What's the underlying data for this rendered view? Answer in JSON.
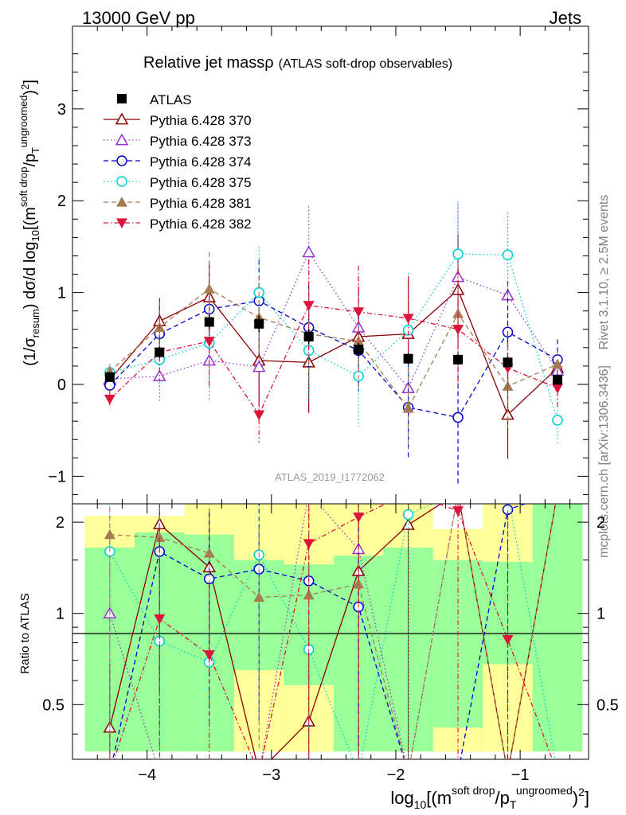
{
  "header": {
    "left": "13000 GeV pp",
    "right": "Jets"
  },
  "side_labels": {
    "rivet": "Rivet 3.1.10, ≥ 2.5M events",
    "mcplots": "mcplots.cern.ch [arXiv:1306.3436]"
  },
  "chart_data": {
    "type": "line",
    "title": "Relative jet massρ",
    "subtitle": "(ATLAS soft-drop observables)",
    "ylabel": "(1/σresum) dσ/d log10[(m^soft drop/pT^ungroomed)^2]",
    "xlabel": "log10[(m^soft drop/pT^ungroomed)^2]",
    "analysis": "ATLAS_2019_I1772062",
    "ratio_ylabel": "Ratio to ATLAS",
    "xlim": [
      -4.6,
      -0.45
    ],
    "ylim": [
      -1.3,
      3.9
    ],
    "ratio_ylim": [
      0.33,
      2.3
    ],
    "x": [
      -4.3,
      -3.9,
      -3.5,
      -3.1,
      -2.7,
      -2.3,
      -1.9,
      -1.5,
      -1.1,
      -0.7
    ],
    "x_ticks": [
      "−4",
      "−3",
      "−2",
      "−1"
    ],
    "y_ticks": [
      "−1",
      "0",
      "1",
      "2",
      "3"
    ],
    "ratio_ticks": [
      "0.5",
      "1",
      "2"
    ],
    "data": {
      "name": "ATLAS",
      "values": [
        0.08,
        0.35,
        0.68,
        0.66,
        0.52,
        0.38,
        0.28,
        0.27,
        0.24,
        0.05
      ],
      "errors": [
        0.05,
        0.06,
        0.08,
        0.09,
        0.08,
        0.07,
        0.06,
        0.06,
        0.06,
        0.04
      ]
    },
    "band_edges": [
      -4.5,
      -4.1,
      -3.7,
      -3.3,
      -2.9,
      -2.5,
      -2.1,
      -1.7,
      -1.3,
      -0.9,
      -0.5
    ],
    "band_yellow": [
      [
        0.35,
        2.1
      ],
      [
        0.35,
        2.1
      ],
      [
        0.35,
        2.3
      ],
      [
        0.35,
        2.3
      ],
      [
        0.35,
        2.3
      ],
      [
        0.35,
        2.3
      ],
      [
        0.35,
        2.3
      ],
      [
        0.35,
        1.9
      ],
      [
        0.35,
        2.3
      ],
      [
        0.35,
        2.3
      ]
    ],
    "band_green": [
      [
        0.35,
        1.65
      ],
      [
        0.35,
        1.85
      ],
      [
        0.35,
        1.82
      ],
      [
        0.35,
        1.5
      ],
      [
        0.35,
        1.45
      ],
      [
        0.35,
        1.55
      ],
      [
        0.35,
        1.65
      ],
      [
        0.35,
        1.5
      ],
      [
        0.35,
        1.48
      ],
      [
        0.35,
        2.3
      ]
    ],
    "band_yellow_low": [
      [
        0.35,
        0.35
      ],
      [
        0.35,
        0.35
      ],
      [
        0.35,
        0.35
      ],
      [
        0.35,
        0.65
      ],
      [
        0.35,
        0.58
      ],
      [
        0.35,
        0.35
      ],
      [
        0.35,
        0.35
      ],
      [
        0.35,
        0.42
      ],
      [
        0.35,
        0.68
      ],
      [
        0.35,
        0.35
      ]
    ],
    "series": [
      {
        "name": "Pythia 6.428 370",
        "color": "#8b0000",
        "marker": "triangle-open",
        "dash": "",
        "values": [
          0.05,
          0.69,
          0.95,
          0.26,
          0.24,
          0.52,
          0.55,
          1.03,
          -0.33,
          0.18
        ],
        "errors": [
          0.05,
          0.25,
          0.38,
          0.5,
          0.55,
          0.55,
          0.63,
          0.6,
          0.48,
          0.13
        ],
        "ratio": [
          0.42,
          1.97,
          1.42,
          0.3,
          0.44,
          1.38,
          1.96,
          2.5,
          0.2,
          2.5
        ]
      },
      {
        "name": "Pythia 6.428 373",
        "color": "#9932cc",
        "marker": "triangle-open",
        "dash": "1.5 3",
        "values": [
          0.06,
          0.09,
          0.26,
          0.19,
          1.44,
          0.62,
          -0.04,
          1.17,
          0.97,
          0.15
        ],
        "errors": [
          0.06,
          0.29,
          0.45,
          0.55,
          0.5,
          0.56,
          0.52,
          0.8,
          0.9,
          0.12
        ],
        "ratio": [
          1.0,
          0.25,
          0.2,
          0.2,
          2.5,
          1.63,
          0.2,
          2.5,
          2.5,
          2.5
        ]
      },
      {
        "name": "Pythia 6.428 374",
        "color": "#0000cd",
        "marker": "circle-open",
        "dash": "6 4",
        "values": [
          -0.01,
          0.55,
          0.82,
          0.91,
          0.62,
          0.37,
          -0.25,
          -0.36,
          0.57,
          0.27
        ],
        "errors": [
          0.05,
          0.26,
          0.45,
          0.45,
          0.45,
          0.45,
          0.55,
          0.72,
          0.55,
          0.22
        ],
        "ratio": [
          0.2,
          1.6,
          1.3,
          1.4,
          1.28,
          1.05,
          0.2,
          0.2,
          2.2,
          2.5
        ]
      },
      {
        "name": "Pythia 6.428 375",
        "color": "#00ced1",
        "marker": "circle-open",
        "dash": "1.5 3",
        "values": [
          0.13,
          0.27,
          0.45,
          1.0,
          0.37,
          0.09,
          0.59,
          1.42,
          1.41,
          -0.39
        ],
        "errors": [
          0.06,
          0.3,
          0.5,
          0.5,
          0.55,
          0.55,
          0.62,
          0.57,
          0.46,
          0.27
        ],
        "ratio": [
          1.6,
          0.81,
          0.69,
          1.56,
          0.76,
          0.2,
          2.12,
          2.5,
          2.5,
          0.2
        ]
      },
      {
        "name": "Pythia 6.428 381",
        "color": "#a67c52",
        "marker": "triangle-filled",
        "dash": "6 4",
        "values": [
          0.14,
          0.62,
          1.04,
          0.73,
          0.55,
          0.47,
          -0.26,
          0.77,
          -0.02,
          0.22
        ],
        "errors": [
          0.08,
          0.28,
          0.4,
          0.45,
          0.5,
          0.5,
          0.44,
          0.55,
          0.45,
          0.14
        ],
        "ratio": [
          1.82,
          1.78,
          1.58,
          1.13,
          1.15,
          1.25,
          0.2,
          2.5,
          0.2,
          2.5
        ]
      },
      {
        "name": "Pythia 6.428 382",
        "color": "#dc143c",
        "marker": "triangle-down-filled",
        "dash": "6 3 1.5 3",
        "values": [
          -0.16,
          0.35,
          0.47,
          -0.33,
          0.86,
          0.79,
          0.72,
          0.6,
          0.18,
          -0.04
        ],
        "errors": [
          0.1,
          0.3,
          0.5,
          0.3,
          0.5,
          0.5,
          0.45,
          0.65,
          0.4,
          0.2
        ],
        "ratio": [
          0.2,
          0.96,
          0.73,
          0.2,
          1.7,
          2.08,
          2.5,
          2.18,
          0.82,
          0.2
        ]
      }
    ]
  }
}
